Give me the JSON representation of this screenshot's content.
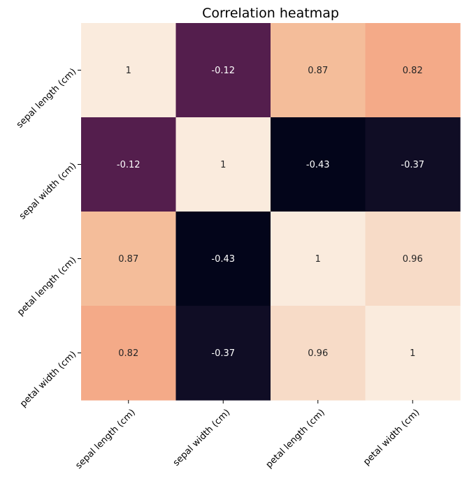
{
  "chart_data": {
    "type": "heatmap",
    "title": "Correlation heatmap",
    "x_labels": [
      "sepal length (cm)",
      "sepal width (cm)",
      "petal length (cm)",
      "petal width (cm)"
    ],
    "y_labels": [
      "sepal length (cm)",
      "sepal width (cm)",
      "petal length (cm)",
      "petal width (cm)"
    ],
    "values": [
      [
        1,
        -0.12,
        0.87,
        0.82
      ],
      [
        -0.12,
        1,
        -0.43,
        -0.37
      ],
      [
        0.87,
        -0.43,
        1,
        0.96
      ],
      [
        0.82,
        -0.37,
        0.96,
        1
      ]
    ],
    "value_labels": [
      [
        "1",
        "-0.12",
        "0.87",
        "0.82"
      ],
      [
        "-0.12",
        "1",
        "-0.43",
        "-0.37"
      ],
      [
        "0.87",
        "-0.43",
        "1",
        "0.96"
      ],
      [
        "0.82",
        "-0.37",
        "0.96",
        "1"
      ]
    ],
    "colormap": "rocket",
    "vmin": -0.43,
    "vmax": 1,
    "colorbar": false,
    "annotated": true
  }
}
